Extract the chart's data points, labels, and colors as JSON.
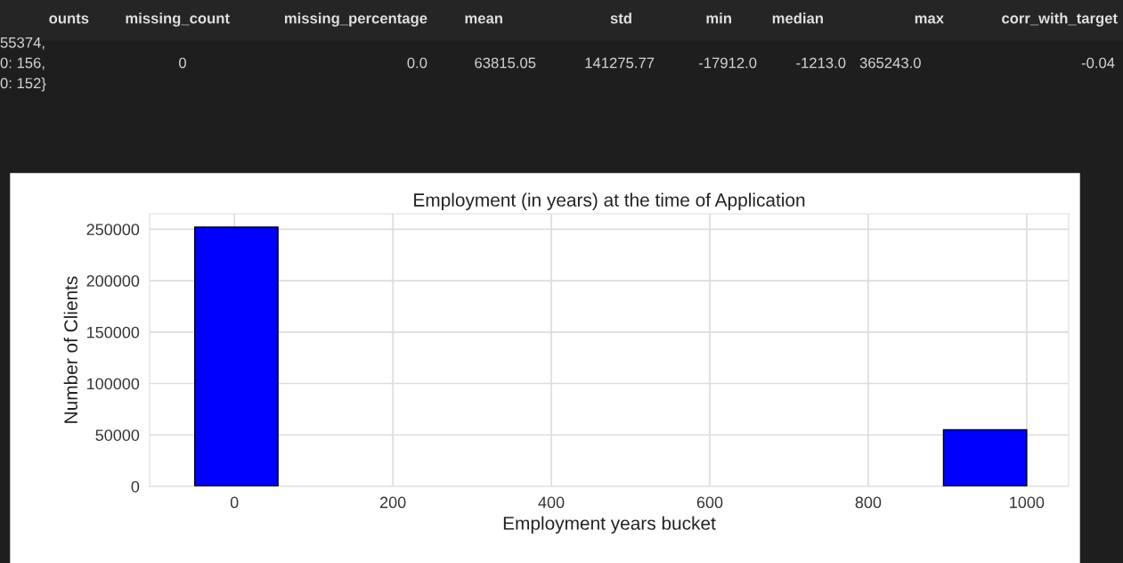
{
  "chart_data": {
    "type": "histogram",
    "title": "Employment (in years) at the time of Application",
    "xlabel": "Employment years bucket",
    "ylabel": "Number of Clients",
    "bins": [
      -50,
      55,
      160,
      265,
      370,
      475,
      580,
      685,
      790,
      895,
      1000
    ],
    "values": [
      252000,
      0,
      0,
      0,
      0,
      0,
      0,
      0,
      0,
      55000
    ],
    "color": "#0000ff",
    "xlim": [
      -107,
      1053
    ],
    "ylim": [
      0,
      265000
    ],
    "xticks": [
      0,
      200,
      400,
      600,
      800,
      1000
    ],
    "yticks": [
      0,
      50000,
      100000,
      150000,
      200000,
      250000
    ],
    "grid": true,
    "legend": false,
    "annotations": [
      "ounts",
      "missing_count",
      "missing_percentage",
      "mean",
      "std",
      "min",
      "median",
      "max",
      "corr_with_target",
      "55374,\n0: 156,\n0: 152}",
      "0",
      "0.0",
      "63815.05",
      "141275.77",
      "-17912.0",
      "-1213.0",
      "365243.0",
      "-0.04"
    ]
  }
}
